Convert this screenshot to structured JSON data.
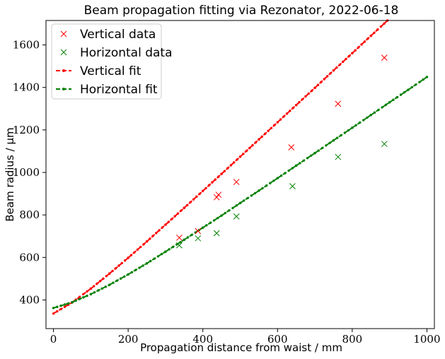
{
  "chart_data": {
    "type": "line",
    "title": "Beam propagation fitting via Rezonator, 2022-06-18",
    "xlabel": "Propagation distance from waist / mm",
    "ylabel": "Beam radius / μm",
    "xlim": [
      -20,
      1020
    ],
    "ylim": [
      265,
      1715
    ],
    "xticks": [
      0,
      200,
      400,
      600,
      800,
      1000
    ],
    "yticks": [
      400,
      600,
      800,
      1000,
      1200,
      1400,
      1600
    ],
    "grid": false,
    "legend_position": "top-left",
    "series": [
      {
        "name": "Vertical data",
        "kind": "scatter",
        "marker": "x",
        "color": "#ff0000",
        "x": [
          337,
          387,
          437,
          442,
          490,
          637,
          762,
          886
        ],
        "y": [
          693,
          724,
          883,
          895,
          955,
          1118,
          1323,
          1540
        ]
      },
      {
        "name": "Horizontal data",
        "kind": "scatter",
        "marker": "x",
        "color": "#008000",
        "x": [
          337,
          387,
          437,
          490,
          640,
          762,
          886
        ],
        "y": [
          657,
          690,
          714,
          793,
          935,
          1073,
          1134
        ]
      },
      {
        "name": "Vertical fit",
        "kind": "line",
        "marker": "dot",
        "color": "#ff0000",
        "x": [
          0,
          50,
          100,
          150,
          200,
          250,
          300,
          350,
          400,
          450,
          500,
          550,
          600,
          650,
          700,
          750,
          800,
          850,
          900,
          950,
          1000
        ],
        "y": [
          336,
          388,
          453,
          524,
          598,
          675,
          754,
          833,
          913,
          993,
          1074,
          1155,
          1236,
          1317,
          1398,
          1480,
          1561,
          1643,
          1724,
          1806,
          1887
        ]
      },
      {
        "name": "Horizontal fit",
        "kind": "line",
        "marker": "dot",
        "color": "#008000",
        "x": [
          0,
          50,
          100,
          150,
          200,
          250,
          300,
          350,
          400,
          450,
          500,
          550,
          600,
          650,
          700,
          750,
          800,
          850,
          900,
          950,
          1000
        ],
        "y": [
          362,
          389,
          427,
          471,
          520,
          572,
          627,
          683,
          740,
          797,
          856,
          914,
          973,
          1032,
          1091,
          1151,
          1210,
          1270,
          1330,
          1389,
          1449
        ]
      }
    ]
  }
}
